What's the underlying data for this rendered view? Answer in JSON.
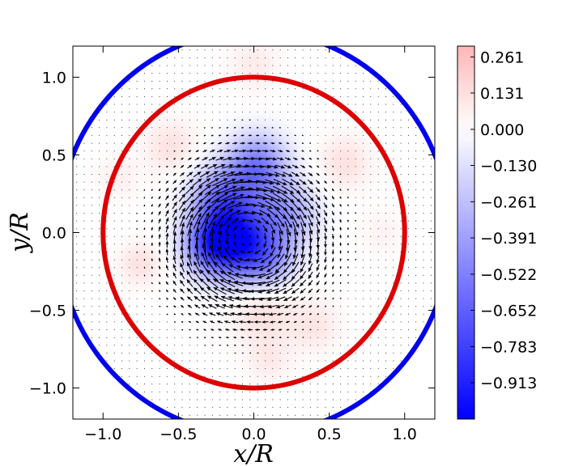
{
  "chart_data": {
    "type": "heatmap",
    "title": "",
    "xlabel": "x/R",
    "ylabel": "y/R",
    "xlim": [
      -1.2,
      1.2
    ],
    "ylim": [
      -1.2,
      1.2
    ],
    "x_ticks": [
      -1.0,
      -0.5,
      0.0,
      0.5,
      1.0
    ],
    "y_ticks": [
      -1.0,
      -0.5,
      0.0,
      0.5,
      1.0
    ],
    "x_tick_labels": [
      "−1.0",
      "−0.5",
      "0.0",
      "0.5",
      "1.0"
    ],
    "y_tick_labels": [
      "−1.0",
      "−0.5",
      "0.0",
      "0.5",
      "1.0"
    ],
    "grid": false,
    "colormap": "bwr",
    "colorbar": {
      "min": -1.044,
      "max": 0.3,
      "tick_values": [
        0.261,
        0.131,
        0.0,
        -0.13,
        -0.261,
        -0.391,
        -0.522,
        -0.652,
        -0.783,
        -0.913
      ],
      "tick_labels": [
        "0.261",
        "0.131",
        "0.000",
        "−0.130",
        "−0.261",
        "−0.391",
        "−0.522",
        "−0.652",
        "−0.783",
        "−0.913"
      ]
    },
    "circles": [
      {
        "cx": 0.0,
        "cy": 0.0,
        "r": 1.0,
        "color": "#dd0000"
      },
      {
        "cx": 0.0,
        "cy": 0.0,
        "r": 1.3,
        "color": "#0000ee"
      }
    ],
    "field_blobs": [
      {
        "x": -0.12,
        "y": -0.05,
        "s": 0.17,
        "a": -0.95
      },
      {
        "x": 0.02,
        "y": 0.42,
        "s": 0.14,
        "a": -0.55
      },
      {
        "x": -0.22,
        "y": 0.22,
        "s": 0.14,
        "a": -0.45
      },
      {
        "x": 0.22,
        "y": 0.12,
        "s": 0.14,
        "a": -0.35
      },
      {
        "x": -0.3,
        "y": -0.08,
        "s": 0.12,
        "a": -0.4
      },
      {
        "x": 0.1,
        "y": -0.18,
        "s": 0.13,
        "a": -0.3
      },
      {
        "x": 0.05,
        "y": -0.5,
        "s": 0.15,
        "a": 0.14
      },
      {
        "x": -0.55,
        "y": 0.55,
        "s": 0.12,
        "a": 0.12
      },
      {
        "x": 0.6,
        "y": 0.45,
        "s": 0.12,
        "a": 0.12
      },
      {
        "x": -0.75,
        "y": -0.2,
        "s": 0.1,
        "a": 0.12
      },
      {
        "x": 0.4,
        "y": -0.6,
        "s": 0.12,
        "a": 0.1
      },
      {
        "x": 0.0,
        "y": 1.08,
        "s": 0.12,
        "a": 0.08
      },
      {
        "x": 0.1,
        "y": -0.82,
        "s": 0.1,
        "a": 0.08
      },
      {
        "x": -0.9,
        "y": 0.35,
        "s": 0.1,
        "a": 0.06
      },
      {
        "x": 0.85,
        "y": 0.0,
        "s": 0.1,
        "a": 0.05
      }
    ],
    "vortex": {
      "cx": -0.05,
      "cy": -0.02,
      "core": 0.5,
      "strength": 1.0
    },
    "quiver_spacing": 0.05,
    "quiver_color": "#000000"
  }
}
